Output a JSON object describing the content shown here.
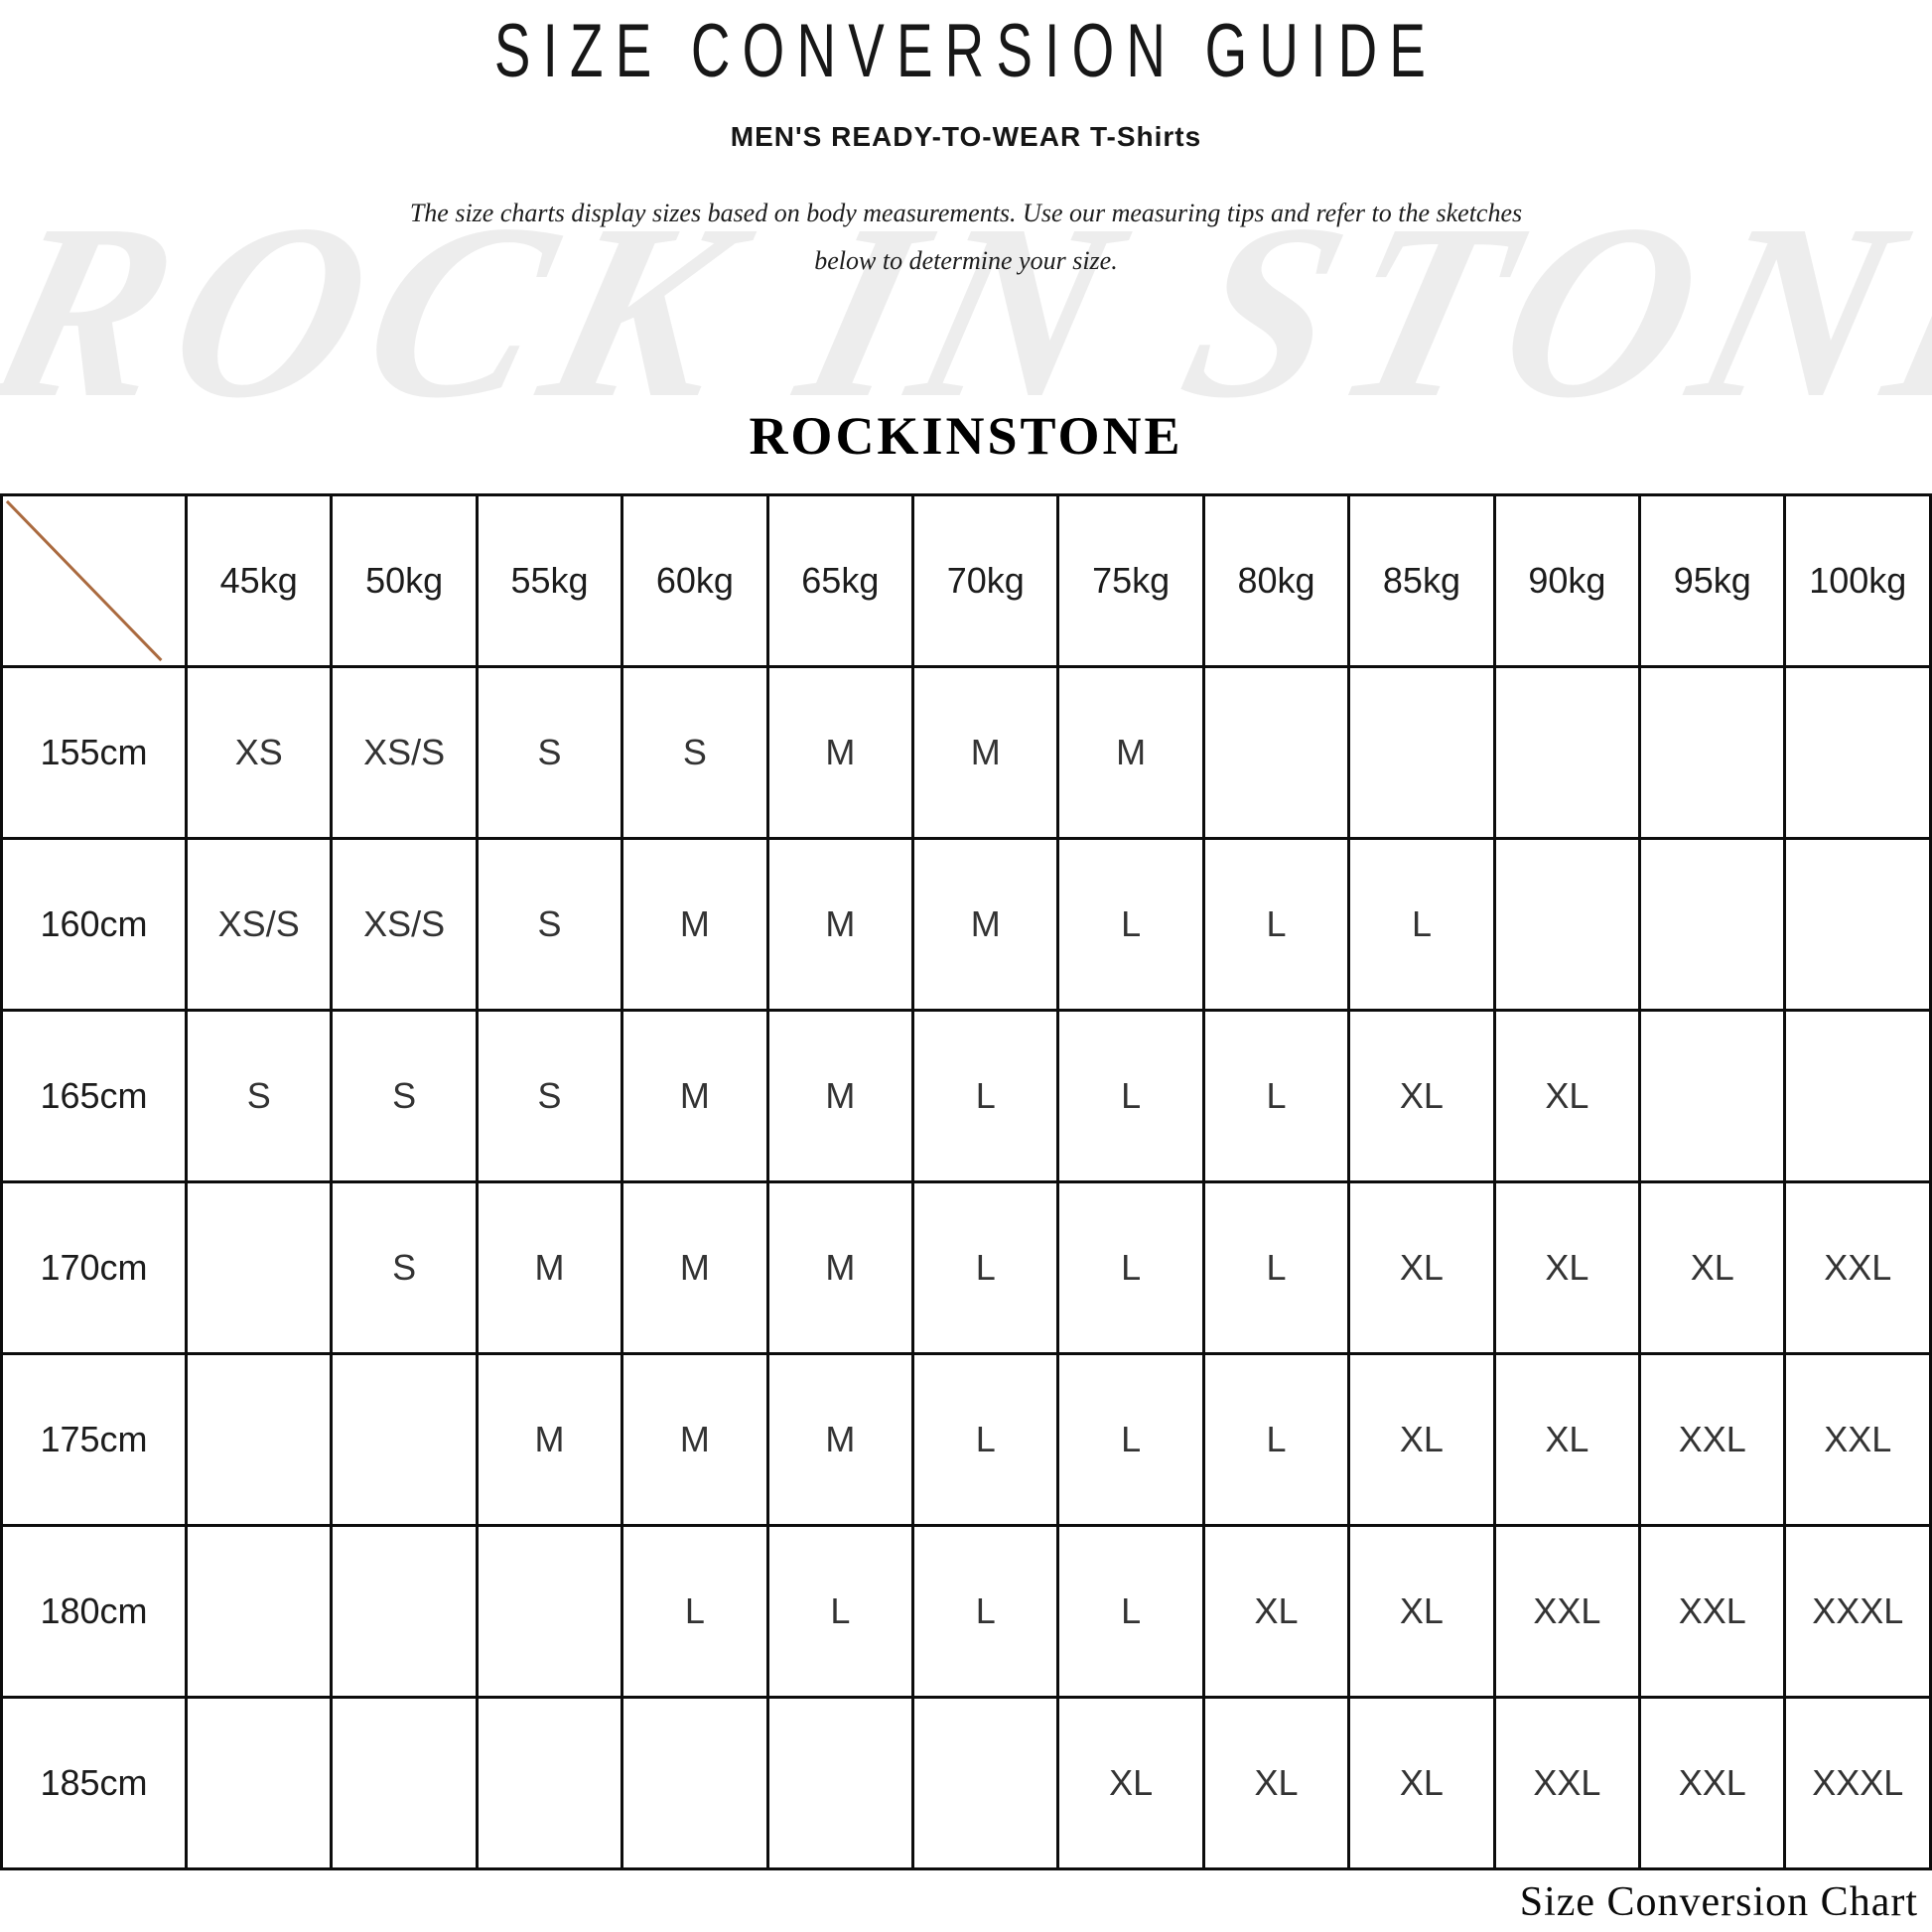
{
  "header": {
    "title": "SIZE CONVERSION GUIDE",
    "subtitle": "MEN'S READY-TO-WEAR T-Shirts",
    "description_line1": "The size charts display sizes based on body measurements.  Use our measuring tips and refer to the sketches",
    "description_line2": "below to determine your size.",
    "brand": "ROCKINSTONE",
    "watermark": "ROCK IN STONE"
  },
  "footer": {
    "caption": "Size Conversion Chart"
  },
  "chart_data": {
    "type": "table",
    "title": "SIZE CONVERSION GUIDE",
    "x_axis_unit": "weight",
    "y_axis_unit": "height",
    "columns": [
      "45kg",
      "50kg",
      "55kg",
      "60kg",
      "65kg",
      "70kg",
      "75kg",
      "80kg",
      "85kg",
      "90kg",
      "95kg",
      "100kg"
    ],
    "rows": [
      {
        "height": "155cm",
        "sizes": [
          "XS",
          "XS/S",
          "S",
          "S",
          "M",
          "M",
          "M",
          "",
          "",
          "",
          "",
          ""
        ]
      },
      {
        "height": "160cm",
        "sizes": [
          "XS/S",
          "XS/S",
          "S",
          "M",
          "M",
          "M",
          "L",
          "L",
          "L",
          "",
          "",
          ""
        ]
      },
      {
        "height": "165cm",
        "sizes": [
          "S",
          "S",
          "S",
          "M",
          "M",
          "L",
          "L",
          "L",
          "XL",
          "XL",
          "",
          ""
        ]
      },
      {
        "height": "170cm",
        "sizes": [
          "",
          "S",
          "M",
          "M",
          "M",
          "L",
          "L",
          "L",
          "XL",
          "XL",
          "XL",
          "XXL"
        ]
      },
      {
        "height": "175cm",
        "sizes": [
          "",
          "",
          "M",
          "M",
          "M",
          "L",
          "L",
          "L",
          "XL",
          "XL",
          "XXL",
          "XXL"
        ]
      },
      {
        "height": "180cm",
        "sizes": [
          "",
          "",
          "",
          "L",
          "L",
          "L",
          "L",
          "XL",
          "XL",
          "XXL",
          "XXL",
          "XXXL"
        ]
      },
      {
        "height": "185cm",
        "sizes": [
          "",
          "",
          "",
          "",
          "",
          "",
          "XL",
          "XL",
          "XL",
          "XXL",
          "XXL",
          "XXXL"
        ]
      }
    ]
  },
  "size_color_map": {
    "XS": "light",
    "XS/S": "light",
    "S": "light",
    "M": "taupe",
    "L": "blue",
    "XL": "taupe",
    "XXL": "light",
    "XXXL": "blue"
  },
  "colors": {
    "cell_light": "#e6e5e3",
    "cell_taupe": "#a6a09b",
    "cell_blue": "#a9b5ca",
    "diagonal": "#aa6a3f",
    "border": "#0d0d0d"
  }
}
